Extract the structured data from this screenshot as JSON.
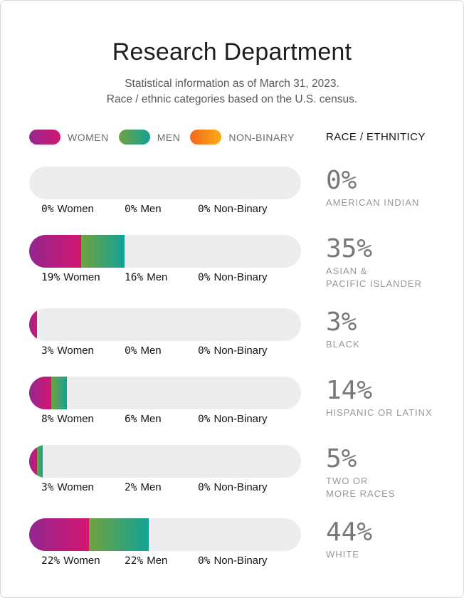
{
  "header": {
    "title": "Research Department",
    "subtitle_line1": "Statistical information as of March 31, 2023.",
    "subtitle_line2": "Race / ethnic categories based on the U.S. census."
  },
  "legend": {
    "women": "WOMEN",
    "men": "MEN",
    "non_binary": "NON-BINARY",
    "race_header": "RACE / ETHNITICY"
  },
  "colors": {
    "women_gradient_start": "#93278F",
    "women_gradient_end": "#D31570",
    "men_gradient_start": "#71A23F",
    "men_gradient_end": "#12A295",
    "non_binary_gradient_start": "#F1681C",
    "non_binary_gradient_end": "#FBAB18",
    "bar_track": "#ECEDEE",
    "stat_text": "#77777B",
    "race_label_text": "#98989B"
  },
  "rows": [
    {
      "women": 0,
      "men": 0,
      "non_binary": 0,
      "women_pct": "0%",
      "women_name": "Women",
      "men_pct": "0%",
      "men_name": "Men",
      "nb_pct": "0%",
      "nb_name": "Non-Binary",
      "total": "0%",
      "race_line1": "AMERICAN INDIAN",
      "race_line2": ""
    },
    {
      "women": 19,
      "men": 16,
      "non_binary": 0,
      "women_pct": "19%",
      "women_name": "Women",
      "men_pct": "16%",
      "men_name": "Men",
      "nb_pct": "0%",
      "nb_name": "Non-Binary",
      "total": "35%",
      "race_line1": "ASIAN &",
      "race_line2": "PACIFIC ISLANDER"
    },
    {
      "women": 3,
      "men": 0,
      "non_binary": 0,
      "women_pct": "3%",
      "women_name": "Women",
      "men_pct": "0%",
      "men_name": "Men",
      "nb_pct": "0%",
      "nb_name": "Non-Binary",
      "total": "3%",
      "race_line1": "BLACK",
      "race_line2": ""
    },
    {
      "women": 8,
      "men": 6,
      "non_binary": 0,
      "women_pct": "8%",
      "women_name": "Women",
      "men_pct": "6%",
      "men_name": "Men",
      "nb_pct": "0%",
      "nb_name": "Non-Binary",
      "total": "14%",
      "race_line1": "HISPANIC OR LATINX",
      "race_line2": ""
    },
    {
      "women": 3,
      "men": 2,
      "non_binary": 0,
      "women_pct": "3%",
      "women_name": "Women",
      "men_pct": "2%",
      "men_name": "Men",
      "nb_pct": "0%",
      "nb_name": "Non-Binary",
      "total": "5%",
      "race_line1": "TWO OR",
      "race_line2": "MORE RACES"
    },
    {
      "women": 22,
      "men": 22,
      "non_binary": 0,
      "women_pct": "22%",
      "women_name": "Women",
      "men_pct": "22%",
      "men_name": "Men",
      "nb_pct": "0%",
      "nb_name": "Non-Binary",
      "total": "44%",
      "race_line1": "WHITE",
      "race_line2": ""
    }
  ],
  "chart_data": {
    "type": "bar",
    "orientation": "horizontal-stacked",
    "title": "Research Department",
    "subtitle": "Statistical information as of March 31, 2023. Race / ethnic categories based on the U.S. census.",
    "categories": [
      "American Indian",
      "Asian & Pacific Islander",
      "Black",
      "Hispanic or Latinx",
      "Two or More Races",
      "White"
    ],
    "series": [
      {
        "name": "Women",
        "values": [
          0,
          19,
          3,
          8,
          3,
          22
        ]
      },
      {
        "name": "Men",
        "values": [
          0,
          16,
          0,
          6,
          2,
          22
        ]
      },
      {
        "name": "Non-Binary",
        "values": [
          0,
          0,
          0,
          0,
          0,
          0
        ]
      }
    ],
    "totals": [
      0,
      35,
      3,
      14,
      5,
      44
    ],
    "unit": "%",
    "x_range": [
      0,
      100
    ],
    "grid": false,
    "legend_position": "top-left"
  }
}
